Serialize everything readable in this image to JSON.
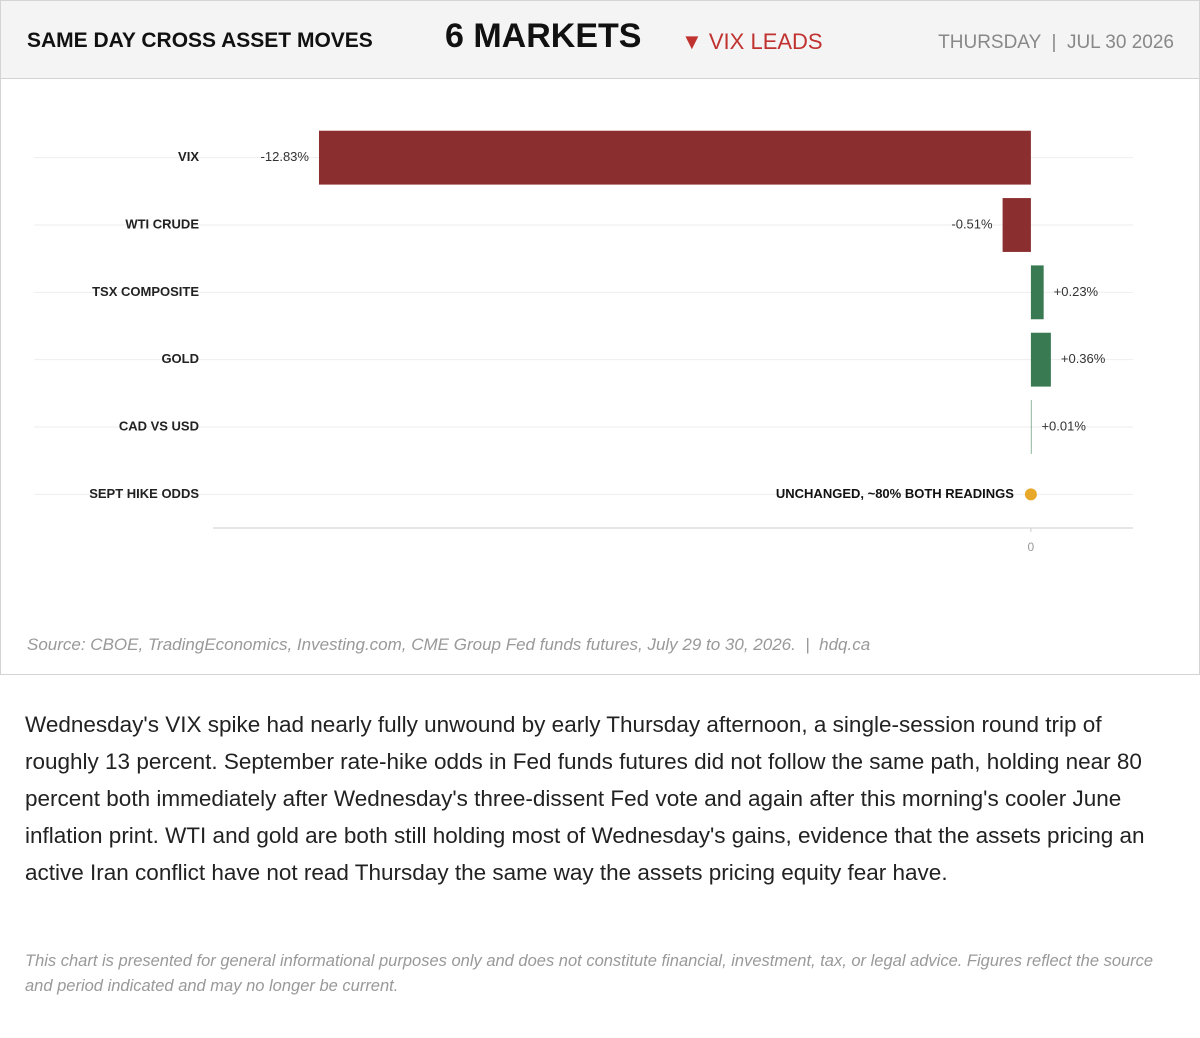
{
  "header": {
    "title": "SAME DAY CROSS ASSET MOVES",
    "count": "6 MARKETS",
    "lead": "▼ VIX LEADS",
    "date": "THURSDAY  |  JUL 30 2026"
  },
  "chart_data": {
    "type": "hbar",
    "categories": [
      "VIX",
      "WTI CRUDE",
      "TSX COMPOSITE",
      "GOLD",
      "CAD VS USD",
      "SEPT HIKE ODDS"
    ],
    "values": [
      -12.83,
      -0.51,
      0.23,
      0.36,
      0.01,
      0
    ],
    "value_labels": [
      "-12.83%",
      "-0.51%",
      "+0.23%",
      "+0.36%",
      "+0.01%",
      "UNCHANGED, ~80% BOTH READINGS"
    ],
    "negative_color": "#8b2e2f",
    "positive_color": "#3a7a52",
    "unchanged_color": "#e8a92a",
    "xlim": [
      -14.74,
      1.84
    ],
    "xticks": [
      0
    ]
  },
  "source": "Source: CBOE, TradingEconomics, Investing.com, CME Group Fed funds futures, July 29 to 30, 2026.  |  hdq.ca",
  "body": "Wednesday's VIX spike had nearly fully unwound by early Thursday afternoon, a single-session round trip of roughly 13 percent. September rate-hike odds in Fed funds futures did not follow the same path, holding near 80 percent both immediately after Wednesday's three-dissent Fed vote and again after this morning's cooler June inflation print. WTI and gold are both still holding most of Wednesday's gains, evidence that the assets pricing an active Iran conflict have not read Thursday the same way the assets pricing equity fear have.",
  "disclaimer": "This chart is presented for general informational purposes only and does not constitute financial, investment, tax, or legal advice. Figures reflect the source and period indicated and may no longer be current."
}
